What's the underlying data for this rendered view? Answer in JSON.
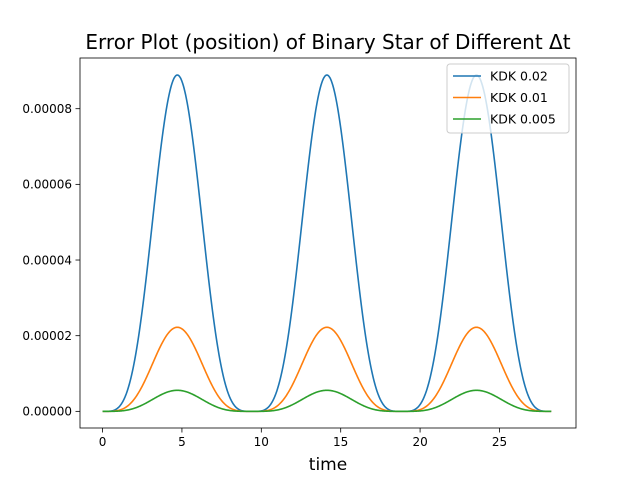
{
  "chart_data": {
    "type": "line",
    "title": "Error Plot (position) of Binary Star of Different Δt",
    "xlabel": "time",
    "ylabel": "",
    "xlim": [
      -1.42,
      29.82
    ],
    "ylim": [
      -4.4e-06,
      9.34e-05
    ],
    "xticks": [
      0,
      5,
      10,
      15,
      20,
      25
    ],
    "xtick_labels": [
      "0",
      "5",
      "10",
      "15",
      "20",
      "25"
    ],
    "yticks": [
      0,
      2e-05,
      4e-05,
      6e-05,
      8e-05
    ],
    "ytick_labels": [
      "0.00000",
      "0.00002",
      "0.00004",
      "0.00006",
      "0.00008"
    ],
    "grid": false,
    "legend_position": "upper right",
    "period": 9.42,
    "x": [
      0,
      0.47,
      0.94,
      1.41,
      1.88,
      2.36,
      2.83,
      3.3,
      3.77,
      4.24,
      4.71,
      5.18,
      5.65,
      6.12,
      6.59,
      7.07,
      7.54,
      8.01,
      8.48,
      8.95,
      9.42,
      9.89,
      10.36,
      10.83,
      11.3,
      11.78,
      12.25,
      12.72,
      13.19,
      13.66,
      14.13,
      14.6,
      15.07,
      15.54,
      16.01,
      16.49,
      16.96,
      17.43,
      17.9,
      18.37,
      18.84,
      19.31,
      19.78,
      20.25,
      20.72,
      21.2,
      21.67,
      22.14,
      22.61,
      23.08,
      23.55,
      24.02,
      24.49,
      24.96,
      25.43,
      25.91,
      26.38,
      26.85,
      27.32,
      27.79,
      28.26
    ],
    "series": [
      {
        "name": "KDK 0.02",
        "color": "#1f77b4",
        "values": [
          0.0,
          2.18e-06,
          8.49e-06,
          1.822e-05,
          3.029e-05,
          4.345e-05,
          5.634e-05,
          6.765e-05,
          7.632e-05,
          8.162e-05,
          8.89e-05,
          8.162e-05,
          7.632e-05,
          6.765e-05,
          5.634e-05,
          4.345e-05,
          3.029e-05,
          1.822e-05,
          8.49e-06,
          2.18e-06,
          0.0,
          2.18e-06,
          8.49e-06,
          1.822e-05,
          3.029e-05,
          4.345e-05,
          5.634e-05,
          6.765e-05,
          7.632e-05,
          8.162e-05,
          8.89e-05,
          8.162e-05,
          7.632e-05,
          6.765e-05,
          5.634e-05,
          4.345e-05,
          3.029e-05,
          1.822e-05,
          8.49e-06,
          2.18e-06,
          0.0,
          2.18e-06,
          8.49e-06,
          1.822e-05,
          3.029e-05,
          4.345e-05,
          5.634e-05,
          6.765e-05,
          7.632e-05,
          8.162e-05,
          8.89e-05,
          8.162e-05,
          7.632e-05,
          6.765e-05,
          5.634e-05,
          4.345e-05,
          3.029e-05,
          1.822e-05,
          8.49e-06,
          2.18e-06,
          0.0
        ]
      },
      {
        "name": "KDK 0.01",
        "color": "#ff7f0e",
        "values": [
          0.0,
          5.4e-07,
          2.12e-06,
          4.56e-06,
          7.57e-06,
          1.086e-05,
          1.409e-05,
          1.691e-05,
          1.908e-05,
          2.041e-05,
          2.222e-05,
          2.041e-05,
          1.908e-05,
          1.691e-05,
          1.409e-05,
          1.086e-05,
          7.57e-06,
          4.56e-06,
          2.12e-06,
          5.4e-07,
          0.0,
          5.4e-07,
          2.12e-06,
          4.56e-06,
          7.57e-06,
          1.086e-05,
          1.409e-05,
          1.691e-05,
          1.908e-05,
          2.041e-05,
          2.222e-05,
          2.041e-05,
          1.908e-05,
          1.691e-05,
          1.409e-05,
          1.086e-05,
          7.57e-06,
          4.56e-06,
          2.12e-06,
          5.4e-07,
          0.0,
          5.4e-07,
          2.12e-06,
          4.56e-06,
          7.57e-06,
          1.086e-05,
          1.409e-05,
          1.691e-05,
          1.908e-05,
          2.041e-05,
          2.222e-05,
          2.041e-05,
          1.908e-05,
          1.691e-05,
          1.409e-05,
          1.086e-05,
          7.57e-06,
          4.56e-06,
          2.12e-06,
          5.4e-07,
          0.0
        ]
      },
      {
        "name": "KDK 0.005",
        "color": "#2ca02c",
        "values": [
          0.0,
          1.4e-07,
          5.3e-07,
          1.14e-06,
          1.89e-06,
          2.72e-06,
          3.52e-06,
          4.23e-06,
          4.77e-06,
          5.1e-06,
          5.56e-06,
          5.1e-06,
          4.77e-06,
          4.23e-06,
          3.52e-06,
          2.72e-06,
          1.89e-06,
          1.14e-06,
          5.3e-07,
          1.4e-07,
          0.0,
          1.4e-07,
          5.3e-07,
          1.14e-06,
          1.89e-06,
          2.72e-06,
          3.52e-06,
          4.23e-06,
          4.77e-06,
          5.1e-06,
          5.56e-06,
          5.1e-06,
          4.77e-06,
          4.23e-06,
          3.52e-06,
          2.72e-06,
          1.89e-06,
          1.14e-06,
          5.3e-07,
          1.4e-07,
          0.0,
          1.4e-07,
          5.3e-07,
          1.14e-06,
          1.89e-06,
          2.72e-06,
          3.52e-06,
          4.23e-06,
          4.77e-06,
          5.1e-06,
          5.56e-06,
          5.1e-06,
          4.77e-06,
          4.23e-06,
          3.52e-06,
          2.72e-06,
          1.89e-06,
          1.14e-06,
          5.3e-07,
          1.4e-07,
          0.0
        ]
      }
    ]
  }
}
